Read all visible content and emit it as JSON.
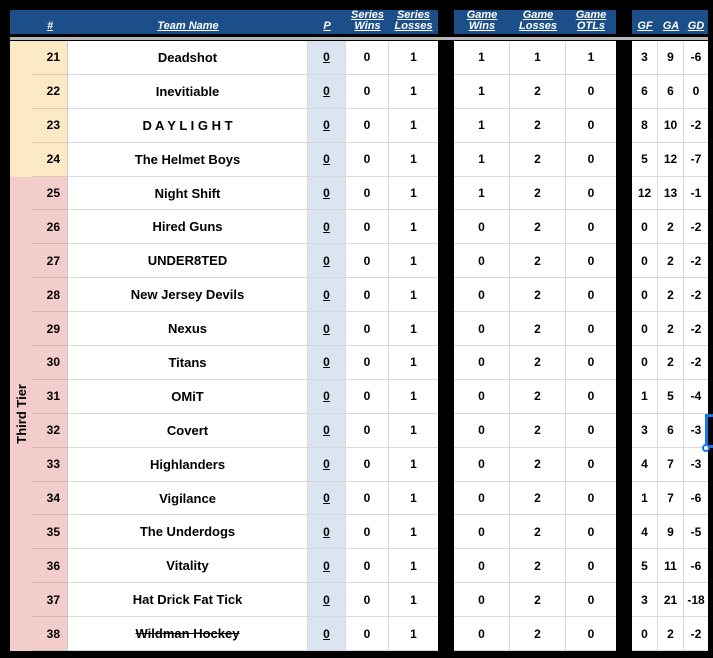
{
  "colors": {
    "header_bg": "#1c4e89",
    "tier_yellow": "#fce9c5",
    "tier_pink": "#f3cccc",
    "p_col_bg": "#dbe5f1",
    "selection_blue": "#1a73e8"
  },
  "table": {
    "headers": {
      "rank": "#",
      "team": "Team Name",
      "p": "P",
      "series_wins": "Series\nWins",
      "series_losses": "Series\nLosses",
      "game_wins": "Game\nWins",
      "game_losses": "Game\nLosses",
      "game_otls": "Game\nOTLs",
      "gf": "GF",
      "ga": "GA",
      "gd": "GD"
    },
    "tier_label": "Third Tier",
    "rows": [
      {
        "rank": 21,
        "team": "Deadshot",
        "tier": "yellow",
        "strike": false,
        "p": 0,
        "series_wins": 0,
        "series_losses": 1,
        "game_wins": 1,
        "game_losses": 1,
        "game_otls": 1,
        "gf": 3,
        "ga": 9,
        "gd": -6
      },
      {
        "rank": 22,
        "team": "Inevitiable",
        "tier": "yellow",
        "strike": false,
        "p": 0,
        "series_wins": 0,
        "series_losses": 1,
        "game_wins": 1,
        "game_losses": 2,
        "game_otls": 0,
        "gf": 6,
        "ga": 6,
        "gd": 0
      },
      {
        "rank": 23,
        "team": "D A Y L I G H T",
        "tier": "yellow",
        "strike": false,
        "p": 0,
        "series_wins": 0,
        "series_losses": 1,
        "game_wins": 1,
        "game_losses": 2,
        "game_otls": 0,
        "gf": 8,
        "ga": 10,
        "gd": -2
      },
      {
        "rank": 24,
        "team": "The Helmet Boys",
        "tier": "yellow",
        "strike": false,
        "p": 0,
        "series_wins": 0,
        "series_losses": 1,
        "game_wins": 1,
        "game_losses": 2,
        "game_otls": 0,
        "gf": 5,
        "ga": 12,
        "gd": -7
      },
      {
        "rank": 25,
        "team": "Night Shift",
        "tier": "pink",
        "strike": false,
        "p": 0,
        "series_wins": 0,
        "series_losses": 1,
        "game_wins": 1,
        "game_losses": 2,
        "game_otls": 0,
        "gf": 12,
        "ga": 13,
        "gd": -1
      },
      {
        "rank": 26,
        "team": "Hired Guns",
        "tier": "pink",
        "strike": false,
        "p": 0,
        "series_wins": 0,
        "series_losses": 1,
        "game_wins": 0,
        "game_losses": 2,
        "game_otls": 0,
        "gf": 0,
        "ga": 2,
        "gd": -2
      },
      {
        "rank": 27,
        "team": "UNDER8TED",
        "tier": "pink",
        "strike": false,
        "p": 0,
        "series_wins": 0,
        "series_losses": 1,
        "game_wins": 0,
        "game_losses": 2,
        "game_otls": 0,
        "gf": 0,
        "ga": 2,
        "gd": -2
      },
      {
        "rank": 28,
        "team": "New Jersey Devils",
        "tier": "pink",
        "strike": false,
        "p": 0,
        "series_wins": 0,
        "series_losses": 1,
        "game_wins": 0,
        "game_losses": 2,
        "game_otls": 0,
        "gf": 0,
        "ga": 2,
        "gd": -2
      },
      {
        "rank": 29,
        "team": "Nexus",
        "tier": "pink",
        "strike": false,
        "p": 0,
        "series_wins": 0,
        "series_losses": 1,
        "game_wins": 0,
        "game_losses": 2,
        "game_otls": 0,
        "gf": 0,
        "ga": 2,
        "gd": -2
      },
      {
        "rank": 30,
        "team": "Titans",
        "tier": "pink",
        "strike": false,
        "p": 0,
        "series_wins": 0,
        "series_losses": 1,
        "game_wins": 0,
        "game_losses": 2,
        "game_otls": 0,
        "gf": 0,
        "ga": 2,
        "gd": -2
      },
      {
        "rank": 31,
        "team": "OMiT",
        "tier": "pink",
        "strike": false,
        "p": 0,
        "series_wins": 0,
        "series_losses": 1,
        "game_wins": 0,
        "game_losses": 2,
        "game_otls": 0,
        "gf": 1,
        "ga": 5,
        "gd": -4
      },
      {
        "rank": 32,
        "team": "Covert",
        "tier": "pink",
        "strike": false,
        "p": 0,
        "series_wins": 0,
        "series_losses": 1,
        "game_wins": 0,
        "game_losses": 2,
        "game_otls": 0,
        "gf": 3,
        "ga": 6,
        "gd": -3
      },
      {
        "rank": 33,
        "team": "Highlanders",
        "tier": "pink",
        "strike": false,
        "p": 0,
        "series_wins": 0,
        "series_losses": 1,
        "game_wins": 0,
        "game_losses": 2,
        "game_otls": 0,
        "gf": 4,
        "ga": 7,
        "gd": -3
      },
      {
        "rank": 34,
        "team": "Vigilance",
        "tier": "pink",
        "strike": false,
        "p": 0,
        "series_wins": 0,
        "series_losses": 1,
        "game_wins": 0,
        "game_losses": 2,
        "game_otls": 0,
        "gf": 1,
        "ga": 7,
        "gd": -6
      },
      {
        "rank": 35,
        "team": "The Underdogs",
        "tier": "pink",
        "strike": false,
        "p": 0,
        "series_wins": 0,
        "series_losses": 1,
        "game_wins": 0,
        "game_losses": 2,
        "game_otls": 0,
        "gf": 4,
        "ga": 9,
        "gd": -5
      },
      {
        "rank": 36,
        "team": "Vitality",
        "tier": "pink",
        "strike": false,
        "p": 0,
        "series_wins": 0,
        "series_losses": 1,
        "game_wins": 0,
        "game_losses": 2,
        "game_otls": 0,
        "gf": 5,
        "ga": 11,
        "gd": -6
      },
      {
        "rank": 37,
        "team": "Hat Drick Fat Tick",
        "tier": "pink",
        "strike": false,
        "p": 0,
        "series_wins": 0,
        "series_losses": 1,
        "game_wins": 0,
        "game_losses": 2,
        "game_otls": 0,
        "gf": 3,
        "ga": 21,
        "gd": -18
      },
      {
        "rank": 38,
        "team": "Wildman Hockey",
        "tier": "pink",
        "strike": true,
        "p": 0,
        "series_wins": 0,
        "series_losses": 1,
        "game_wins": 0,
        "game_losses": 2,
        "game_otls": 0,
        "gf": 0,
        "ga": 2,
        "gd": -2
      }
    ]
  }
}
